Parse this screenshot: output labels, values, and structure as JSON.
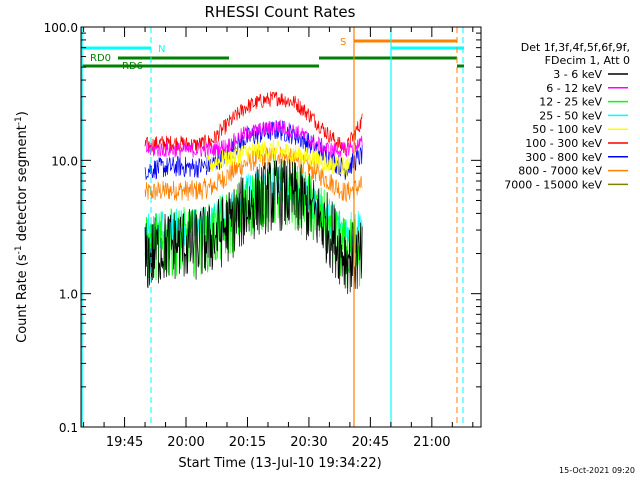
{
  "chart_data": {
    "type": "line",
    "title": "RHESSI Count Rates",
    "xlabel": "Start Time (13-Jul-10 19:34:22)",
    "ylabel": "Count Rate (s",
    "ylabel_sup": "-1",
    "ylabel_mid": " detector segment",
    "ylabel_sup2": "-1",
    "ylabel_end": ")",
    "yscale": "log",
    "ylim": [
      0.1,
      100.0
    ],
    "xlim": [
      "19:34:22",
      "21:12:00"
    ],
    "y_ticks": [
      "0.1",
      "1.0",
      "10.0",
      "100.0"
    ],
    "x_ticks": [
      "19:45",
      "20:00",
      "20:15",
      "20:30",
      "20:45",
      "21:00"
    ],
    "legend_header": [
      "Det 1f,3f,4f,5f,6f,9f,",
      "FDecim 1, Att 0"
    ],
    "series": [
      {
        "name": "3 - 6 keV",
        "color": "#000000",
        "x_start": "19:50",
        "x_end": "20:43",
        "values": [
          1.8,
          2.2,
          2.4,
          2.3,
          2.6,
          3.2,
          4.3,
          5.2,
          5.6,
          5.3,
          4.2,
          3.0,
          1.9,
          1.8
        ]
      },
      {
        "name": "6 - 12 keV",
        "color": "#ff00ff",
        "x_start": "19:50",
        "x_end": "20:43",
        "values": [
          12.0,
          12.0,
          12.0,
          12.0,
          12.0,
          13.0,
          16.0,
          17.0,
          18.0,
          16.5,
          14.0,
          12.0,
          12.0,
          13.5
        ]
      },
      {
        "name": "12 - 25 keV",
        "color": "#00ff00",
        "x_start": "19:50",
        "x_end": "20:43",
        "values": [
          2.1,
          2.3,
          2.5,
          2.4,
          2.7,
          3.3,
          4.4,
          5.4,
          5.8,
          5.4,
          4.3,
          3.1,
          2.0,
          2.0
        ]
      },
      {
        "name": "25 - 50 keV",
        "color": "#00ffff",
        "x_start": "19:50",
        "x_end": "20:43",
        "values": [
          2.8,
          3.0,
          3.2,
          3.1,
          3.4,
          4.3,
          5.6,
          6.4,
          6.7,
          6.2,
          5.0,
          3.8,
          3.0,
          3.3
        ]
      },
      {
        "name": "50 - 100 keV",
        "color": "#ffff00",
        "x_start": "20:05",
        "x_end": "20:40",
        "values": [
          9.0,
          10.5,
          11.5,
          12.0,
          11.5,
          10.5,
          9.5,
          8.8
        ]
      },
      {
        "name": "100 - 300 keV",
        "color": "#ff0000",
        "x_start": "19:50",
        "x_end": "20:43",
        "values": [
          13.0,
          13.5,
          13.5,
          13.0,
          14.0,
          19.0,
          25.0,
          28.0,
          29.5,
          27.0,
          21.0,
          15.5,
          12.0,
          20.0
        ]
      },
      {
        "name": "300 - 800 keV",
        "color": "#0000ff",
        "x_start": "19:50",
        "x_end": "20:43",
        "values": [
          8.5,
          8.8,
          9.0,
          8.8,
          9.2,
          11.5,
          14.5,
          16.0,
          17.0,
          15.5,
          13.0,
          10.5,
          8.5,
          11.0
        ]
      },
      {
        "name": "800 - 7000 keV",
        "color": "#ff8000",
        "x_start": "19:50",
        "x_end": "20:43",
        "values": [
          5.7,
          5.9,
          6.0,
          5.9,
          6.3,
          7.8,
          9.5,
          10.5,
          11.0,
          10.0,
          8.5,
          7.0,
          5.7,
          6.5
        ]
      },
      {
        "name": "7000 - 15000 keV",
        "color": "#808000",
        "x_start": "19:50",
        "x_end": "20:43",
        "values": []
      }
    ],
    "attenuator_bars": [
      {
        "label": "RD0",
        "color": "#008000"
      },
      {
        "label": "RD6",
        "color": "#008000"
      },
      {
        "label": "N",
        "color": "#00ffff"
      },
      {
        "label": "S",
        "color": "#ff8000"
      }
    ]
  },
  "footer_timestamp": "15-Oct-2021 09:20"
}
